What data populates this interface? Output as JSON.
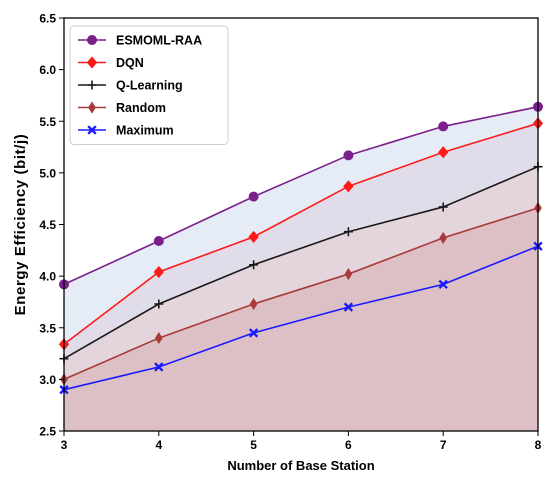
{
  "chart_data": {
    "type": "line",
    "title": "",
    "xlabel": "Number of Base Station",
    "ylabel": "Energy Efficiency (bit/j)",
    "x": [
      3,
      4,
      5,
      6,
      7,
      8
    ],
    "xlim": [
      3,
      8
    ],
    "ylim": [
      2.5,
      6.5
    ],
    "xticks": [
      "3",
      "4",
      "5",
      "6",
      "7",
      "8"
    ],
    "yticks": [
      "2.5",
      "3.0",
      "3.5",
      "4.0",
      "4.5",
      "5.0",
      "5.5",
      "6.0",
      "6.5"
    ],
    "grid": false,
    "legend_position": "top-left",
    "series": [
      {
        "name": "ESMOML-RAA",
        "values": [
          3.92,
          4.34,
          4.77,
          5.17,
          5.45,
          5.64
        ],
        "color": "#7b1f8c",
        "fill": "#e6ecf5",
        "marker": "circle"
      },
      {
        "name": "DQN",
        "values": [
          3.34,
          4.04,
          4.38,
          4.87,
          5.2,
          5.48
        ],
        "color": "#ff1a1a",
        "fill": "#e1dcea",
        "marker": "diamond"
      },
      {
        "name": "Q-Learning",
        "values": [
          3.2,
          3.73,
          4.11,
          4.43,
          4.67,
          5.06
        ],
        "color": "#1a1a1a",
        "fill": "#e4d4db",
        "marker": "plus"
      },
      {
        "name": "Random",
        "values": [
          3.0,
          3.4,
          3.73,
          4.02,
          4.37,
          4.66
        ],
        "color": "#a83a3a",
        "fill": "#ddc0c6",
        "marker": "thin-diamond"
      },
      {
        "name": "Maximum",
        "values": [
          2.9,
          3.12,
          3.45,
          3.7,
          3.92,
          4.29
        ],
        "color": "#1a1aff",
        "fill": "#ddc0c6",
        "marker": "x"
      }
    ]
  }
}
